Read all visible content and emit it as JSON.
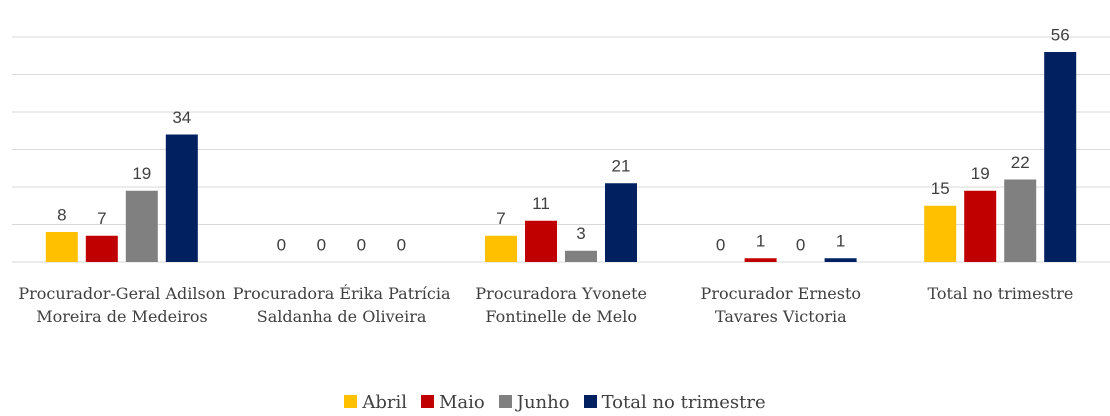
{
  "chart_data": {
    "type": "bar",
    "categories": [
      "Procurador-Geral Adilson Moreira de Medeiros",
      "Procuradora Érika Patrícia Saldanha de Oliveira",
      "Procuradora Yvonete Fontinelle de Melo",
      "Procurador Ernesto Tavares Victoria",
      "Total no trimestre"
    ],
    "series": [
      {
        "name": "Abril",
        "color": "#ffc000",
        "values": [
          8,
          0,
          7,
          0,
          15
        ]
      },
      {
        "name": "Maio",
        "color": "#c00000",
        "values": [
          7,
          0,
          11,
          1,
          19
        ]
      },
      {
        "name": "Junho",
        "color": "#808080",
        "values": [
          19,
          0,
          3,
          0,
          22
        ]
      },
      {
        "name": "Total no trimestre",
        "color": "#002060",
        "values": [
          34,
          0,
          21,
          1,
          56
        ]
      }
    ],
    "ylim": [
      0,
      60
    ],
    "yticks": [
      0,
      10,
      20,
      30,
      40,
      50,
      60
    ],
    "grid": true,
    "legend": "bottom"
  }
}
